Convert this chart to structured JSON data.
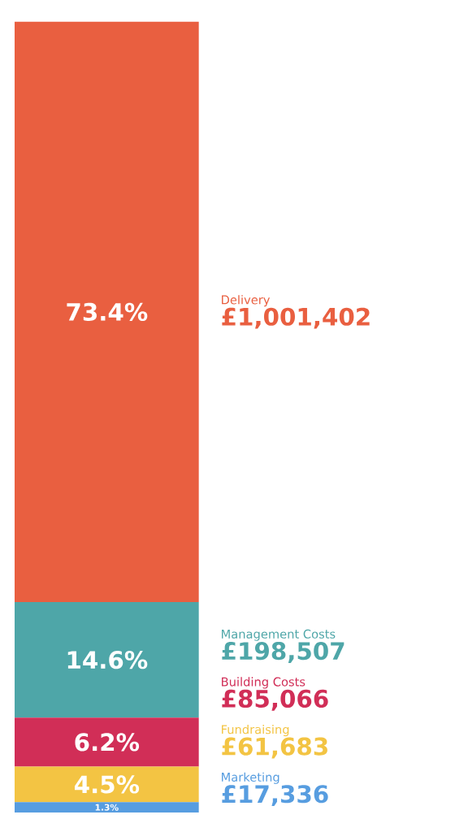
{
  "chart_data": {
    "type": "bar",
    "stacked": true,
    "categories": [
      null
    ],
    "series": [
      {
        "name": "Marketing",
        "color": "#579de0",
        "values": [
          1.3
        ],
        "value_labels": [
          "1.3%"
        ]
      },
      {
        "name": "Fundraising",
        "color": "#f3c443",
        "values": [
          4.5
        ],
        "value_labels": [
          "4.5%"
        ]
      },
      {
        "name": "Building Costs",
        "color": "#d12e57",
        "values": [
          6.2
        ],
        "value_labels": [
          "6.2%"
        ]
      },
      {
        "name": "Management Costs",
        "color": "#4ea6a8",
        "values": [
          14.6
        ],
        "value_labels": [
          "14.6%"
        ]
      },
      {
        "name": "Delivery",
        "color": "#e95f40",
        "values": [
          73.4
        ],
        "value_labels": [
          "73.4%"
        ]
      }
    ],
    "annotations": [
      "£17,336",
      "£61,683",
      "£85,066",
      "£198,507",
      "£1,001,402"
    ]
  }
}
